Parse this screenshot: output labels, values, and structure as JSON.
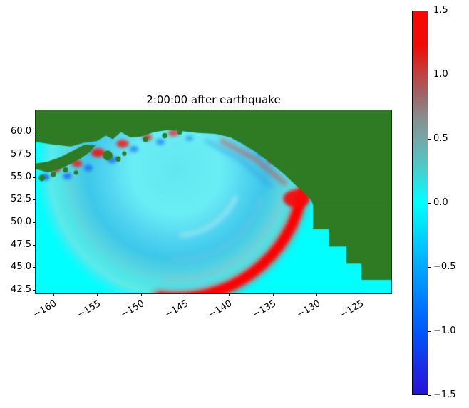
{
  "chart_data": {
    "type": "heatmap",
    "title": "2:00:00 after earthquake",
    "xlabel": "",
    "ylabel": "",
    "xlim": [
      -162.0,
      -121.5
    ],
    "ylim": [
      42.1,
      62.4
    ],
    "x_ticks": [
      -160,
      -155,
      -150,
      -145,
      -140,
      -135,
      -130,
      -125
    ],
    "x_tick_labels": [
      "−160",
      "−155",
      "−150",
      "−145",
      "−140",
      "−135",
      "−130",
      "−125"
    ],
    "y_ticks": [
      60.0,
      57.5,
      55.0,
      52.5,
      50.0,
      47.5,
      45.0,
      42.5
    ],
    "y_tick_labels": [
      "60.0",
      "57.5",
      "55.0",
      "52.5",
      "50.0",
      "47.5",
      "45.0",
      "42.5"
    ],
    "colors": {
      "ocean": "#00ffff",
      "land": "#2e7b24",
      "background": "#ffffff"
    },
    "colorbar": {
      "vmin": -1.5,
      "vmax": 1.5,
      "ticks": [
        1.5,
        1.0,
        0.5,
        0.0,
        -0.5,
        -1.0,
        -1.5
      ],
      "tick_labels": [
        "1.5",
        "1.0",
        "0.5",
        "0.0",
        "−0.5",
        "−1.0",
        "−1.5"
      ],
      "gradient_stops": [
        [
          0.0,
          "#fb0606"
        ],
        [
          0.09,
          "#ef0b06"
        ],
        [
          0.15,
          "#c93a35"
        ],
        [
          0.21,
          "#a26060"
        ],
        [
          0.28,
          "#869090"
        ],
        [
          0.333,
          "#74a8a8"
        ],
        [
          0.4,
          "#52c6c6"
        ],
        [
          0.46,
          "#20eaea"
        ],
        [
          0.5,
          "#00ffff"
        ],
        [
          0.56,
          "#00e2f8"
        ],
        [
          0.62,
          "#00c2ff"
        ],
        [
          0.7,
          "#0098ff"
        ],
        [
          0.78,
          "#0070ff"
        ],
        [
          0.85,
          "#0550f8"
        ],
        [
          0.93,
          "#1b2ce4"
        ],
        [
          1.0,
          "#2414d2"
        ]
      ]
    },
    "wave": {
      "center": [
        -146.0,
        55.8
      ],
      "gradient_radius": 16.2,
      "front_radius": 14.4,
      "interior_stops": [
        [
          0.0,
          "#8cdcebb0"
        ],
        [
          0.3,
          "#a8e4f0a0"
        ],
        [
          0.48,
          "#6cc8ecc0"
        ],
        [
          0.62,
          "#55b2e2b8"
        ],
        [
          0.74,
          "#86c0d2a8"
        ],
        [
          0.82,
          "#b2c8cc70"
        ],
        [
          0.875,
          "#c8d2d277"
        ],
        [
          0.93,
          "#7adce855"
        ],
        [
          1.0,
          "#00ffff00"
        ]
      ]
    },
    "overlays": [
      {
        "kind": "arc",
        "r": 7.4,
        "a0": 25,
        "a1": 85,
        "w": 0.5,
        "color": "#cdeef4",
        "alpha": 0.5,
        "blur": 3
      },
      {
        "kind": "arc",
        "r": 10.1,
        "a0": 18,
        "a1": 92,
        "w": 0.45,
        "color": "#7cc8e8",
        "alpha": 0.45,
        "blur": 3
      },
      {
        "kind": "arc",
        "r": 12.3,
        "a0": 15,
        "a1": 95,
        "w": 0.5,
        "color": "#9fb8c4",
        "alpha": 0.4,
        "blur": 3
      },
      {
        "kind": "line",
        "pts": [
          [
            -142.5,
            59.0
          ],
          [
            -138.6,
            56.9
          ],
          [
            -135.2,
            54.0
          ]
        ],
        "w": 0.55,
        "color": "#3898e0",
        "alpha": 0.45,
        "blur": 3
      },
      {
        "kind": "line",
        "pts": [
          [
            -140.8,
            59.0
          ],
          [
            -137.0,
            57.0
          ],
          [
            -133.6,
            54.3
          ]
        ],
        "w": 0.5,
        "color": "#e04040",
        "alpha": 0.6,
        "blur": 3
      },
      {
        "kind": "arc",
        "r": 14.4,
        "a0": 9,
        "a1": 98,
        "w": 1.6,
        "color": "#f03030",
        "alpha": 0.55,
        "blur": 5
      },
      {
        "kind": "arc",
        "r": 14.4,
        "a0": 10,
        "a1": 97,
        "w": 1.15,
        "color": "#f60b0b",
        "alpha": 0.97,
        "blur": 2
      },
      {
        "kind": "arc",
        "r": 14.35,
        "a0": 11,
        "a1": 95,
        "w": 0.5,
        "color": "#ff0000",
        "alpha": 1.0,
        "blur": 1
      }
    ],
    "blobs": [
      [
        -160.9,
        55.0,
        0.5,
        0.35,
        "#1550e8",
        0.85
      ],
      [
        -159.7,
        55.9,
        0.55,
        0.4,
        "#f21818",
        0.9
      ],
      [
        -158.4,
        55.1,
        0.5,
        0.35,
        "#1560f0",
        0.8
      ],
      [
        -157.3,
        56.5,
        0.6,
        0.4,
        "#f21818",
        0.85
      ],
      [
        -156.0,
        56.0,
        0.5,
        0.35,
        "#1a66f2",
        0.8
      ],
      [
        -154.9,
        57.7,
        0.8,
        0.5,
        "#f01212",
        0.9
      ],
      [
        -153.3,
        56.9,
        0.55,
        0.4,
        "#1a66f2",
        0.75
      ],
      [
        -152.1,
        58.7,
        0.7,
        0.45,
        "#f21515",
        0.85
      ],
      [
        -150.8,
        58.1,
        0.5,
        0.35,
        "#1a70f5",
        0.7
      ],
      [
        -149.3,
        59.4,
        0.55,
        0.4,
        "#f02020",
        0.8
      ],
      [
        -147.8,
        58.9,
        0.5,
        0.35,
        "#1a70f5",
        0.65
      ],
      [
        -146.3,
        59.9,
        0.6,
        0.4,
        "#ee2525",
        0.75
      ],
      [
        -144.5,
        59.3,
        0.45,
        0.3,
        "#2a80f0",
        0.6
      ],
      [
        -143.0,
        60.4,
        0.5,
        0.3,
        "#ee3030",
        0.6
      ],
      [
        -141.2,
        60.1,
        0.45,
        0.3,
        "#2a7ae8",
        0.55
      ],
      [
        -139.0,
        59.7,
        0.6,
        0.45,
        "#1550e8",
        0.8
      ],
      [
        -137.5,
        58.8,
        0.65,
        0.45,
        "#f01515",
        0.85
      ],
      [
        -136.2,
        57.7,
        0.55,
        0.4,
        "#1a60ee",
        0.75
      ],
      [
        -135.1,
        56.8,
        0.5,
        0.35,
        "#f22020",
        0.8
      ],
      [
        -132.3,
        52.6,
        1.5,
        1.0,
        "#fa0808",
        0.95
      ]
    ],
    "land": {
      "polygons": [
        [
          [
            -162,
            62.5
          ],
          [
            -162,
            58.9
          ],
          [
            -160,
            58.6
          ],
          [
            -158,
            58.4
          ],
          [
            -156.5,
            58.8
          ],
          [
            -155,
            59.0
          ],
          [
            -154,
            59.6
          ],
          [
            -153.2,
            59.2
          ],
          [
            -152.3,
            60.0
          ],
          [
            -151.2,
            59.4
          ],
          [
            -150,
            59.5
          ],
          [
            -148.5,
            60.0
          ],
          [
            -147,
            60.2
          ],
          [
            -145.5,
            60.1
          ],
          [
            -143.5,
            59.9
          ],
          [
            -141.5,
            59.8
          ],
          [
            -139.8,
            59.4
          ],
          [
            -138.3,
            58.6
          ],
          [
            -136.8,
            57.7
          ],
          [
            -135.3,
            56.6
          ],
          [
            -133.8,
            55.4
          ],
          [
            -132.6,
            54.3
          ],
          [
            -131.4,
            53.2
          ],
          [
            -130.6,
            52.4
          ],
          [
            -130.4,
            51.9
          ],
          [
            -121.5,
            51.9
          ],
          [
            -121.5,
            62.5
          ]
        ],
        [
          [
            -130.4,
            52.2
          ],
          [
            -130.4,
            49.2
          ],
          [
            -128.6,
            49.2
          ],
          [
            -128.6,
            47.3
          ],
          [
            -126.6,
            47.3
          ],
          [
            -126.6,
            45.4
          ],
          [
            -124.9,
            45.4
          ],
          [
            -124.9,
            43.6
          ],
          [
            -121.5,
            43.6
          ],
          [
            -121.5,
            52.2
          ]
        ],
        [
          [
            -162,
            55.9
          ],
          [
            -160.6,
            55.5
          ],
          [
            -159.2,
            55.9
          ],
          [
            -157.9,
            56.5
          ],
          [
            -156.8,
            57.1
          ],
          [
            -155.8,
            57.8
          ],
          [
            -155.2,
            58.5
          ],
          [
            -156.4,
            58.6
          ],
          [
            -157.8,
            57.9
          ],
          [
            -159.2,
            57.2
          ],
          [
            -160.7,
            56.7
          ],
          [
            -162,
            56.5
          ]
        ]
      ],
      "islands": [
        [
          -161.3,
          54.9,
          0.35
        ],
        [
          -160.0,
          55.3,
          0.3
        ],
        [
          -158.6,
          55.8,
          0.3
        ],
        [
          -157.4,
          55.5,
          0.25
        ],
        [
          -153.8,
          57.4,
          0.55
        ],
        [
          -152.6,
          57.0,
          0.3
        ],
        [
          -151.9,
          57.6,
          0.25
        ],
        [
          -149.5,
          59.2,
          0.3
        ],
        [
          -147.3,
          59.6,
          0.3
        ],
        [
          -145.6,
          60.0,
          0.28
        ]
      ]
    }
  }
}
